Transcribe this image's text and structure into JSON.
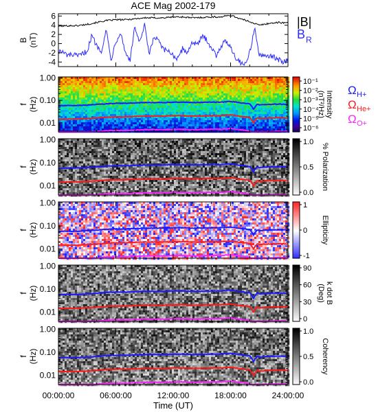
{
  "chart_data": {
    "type": "line",
    "title": "ACE Mag 2002-179",
    "xlabel": "Time (UT)",
    "x_ticks": [
      "00:00:00",
      "06:00:00",
      "12:00:00",
      "18:00:00",
      "24:00:00"
    ],
    "xlim_hours": [
      0,
      24
    ],
    "panels": [
      {
        "id": "b-field",
        "type": "line",
        "ylabel_main": "B",
        "ylabel_unit": "(nT)",
        "ylim": [
          -5,
          6.5
        ],
        "y_ticks": [
          "6",
          "4",
          "2",
          "0",
          "-2",
          "-4"
        ],
        "legend": [
          {
            "label": "|B|",
            "color": "#000000"
          },
          {
            "label": "B",
            "sub": "R",
            "color": "#2a2aff"
          }
        ],
        "series": [
          {
            "name": "|B|",
            "color": "#000000",
            "x": [
              0,
              1,
              2,
              3,
              4,
              5,
              6,
              7,
              8,
              9,
              10,
              11,
              12,
              13,
              14,
              15,
              16,
              17,
              18,
              19,
              20,
              21,
              22,
              23,
              24
            ],
            "y": [
              3.8,
              3.9,
              3.9,
              4.2,
              4.6,
              5.0,
              5.2,
              5.2,
              5.4,
              5.6,
              5.6,
              5.6,
              5.8,
              5.8,
              5.6,
              5.7,
              5.8,
              5.8,
              6.2,
              5.4,
              4.8,
              4.0,
              4.4,
              4.6,
              4.5
            ]
          },
          {
            "name": "B_R",
            "color": "#2a2aff",
            "x": [
              0,
              0.5,
              1,
              1.5,
              2,
              2.5,
              3,
              3.5,
              4,
              4.5,
              5,
              5.5,
              6,
              6.5,
              7,
              7.5,
              8,
              8.5,
              9,
              9.5,
              10,
              10.5,
              11,
              11.5,
              12,
              12.5,
              13,
              13.5,
              14,
              14.5,
              15,
              15.5,
              16,
              16.5,
              17,
              17.5,
              18,
              18.5,
              19,
              19.5,
              20,
              20.5,
              21,
              21.5,
              22,
              22.5,
              23,
              23.5,
              24
            ],
            "y": [
              -1.5,
              -2.0,
              -2.6,
              -2.4,
              -2.8,
              -2.3,
              -1.6,
              1.8,
              -0.5,
              -1.5,
              3.0,
              -3.5,
              0.5,
              2.5,
              -2.0,
              -3.5,
              3.8,
              0.0,
              4.0,
              -2.5,
              1.5,
              0.5,
              -1.5,
              -1.5,
              -2.5,
              -3.5,
              -1.0,
              -2.0,
              0.5,
              -0.5,
              1.5,
              1.0,
              -1.0,
              -2.5,
              -0.5,
              0.5,
              -0.5,
              -3.0,
              -4.0,
              -4.5,
              -2.0,
              3.5,
              -2.5,
              -3.0,
              -2.5,
              -3.0,
              -3.5,
              -4.0,
              -3.5
            ]
          }
        ]
      },
      {
        "id": "intensity",
        "type": "heatmap",
        "ylabel_main": "f",
        "ylabel_unit": "(Hz)",
        "y_scale": "log",
        "ylim": [
          0.004,
          1.1
        ],
        "y_ticks": [
          "1.00",
          "0.10",
          "0.01"
        ],
        "colorbar": {
          "label": "Intensity",
          "unit": "(nT²/Hz)",
          "ticks": [
            "10⁻¹",
            "10⁻²",
            "10⁻³",
            "10⁻⁴",
            "10⁻⁵",
            "10⁻⁶"
          ],
          "colormap": "rainbow"
        }
      },
      {
        "id": "polarization",
        "type": "heatmap",
        "ylabel_main": "f",
        "ylabel_unit": "(Hz)",
        "y_scale": "log",
        "ylim": [
          0.004,
          1.1
        ],
        "y_ticks": [
          "1.00",
          "0.10",
          "0.01"
        ],
        "colorbar": {
          "label": "% Polarization",
          "ticks": [
            "1.0",
            "0.5",
            "0.0"
          ],
          "colormap": "gray"
        }
      },
      {
        "id": "ellipticity",
        "type": "heatmap",
        "ylabel_main": "f",
        "ylabel_unit": "(Hz)",
        "y_scale": "log",
        "ylim": [
          0.004,
          1.1
        ],
        "y_ticks": [
          "1.00",
          "0.10",
          "0.01"
        ],
        "colorbar": {
          "label": "Ellipticity",
          "ticks": [
            "1",
            "0",
            "-1"
          ],
          "colormap": "bwr"
        }
      },
      {
        "id": "kdotb",
        "type": "heatmap",
        "ylabel_main": "f",
        "ylabel_unit": "(Hz)",
        "y_scale": "log",
        "ylim": [
          0.004,
          1.1
        ],
        "y_ticks": [
          "1.00",
          "0.10",
          "0.01"
        ],
        "colorbar": {
          "label": "k dot B",
          "unit": "(Deg)",
          "ticks": [
            "90",
            "60",
            "30",
            "0"
          ],
          "colormap": "gray"
        }
      },
      {
        "id": "coherency",
        "type": "heatmap",
        "ylabel_main": "f",
        "ylabel_unit": "(Hz)",
        "y_scale": "log",
        "ylim": [
          0.004,
          1.1
        ],
        "y_ticks": [
          "1.00",
          "0.10",
          "0.01"
        ],
        "colorbar": {
          "label": "Coherency",
          "ticks": [
            "1.0",
            "0.5",
            "0.0"
          ],
          "colormap": "gray"
        }
      }
    ],
    "gyrofrequency_lines": {
      "legend": [
        {
          "label": "Ω",
          "sub": "H+",
          "color": "#1a1aff"
        },
        {
          "label": "Ω",
          "sub": "He+",
          "color": "#ff1a1a"
        },
        {
          "label": "Ω",
          "sub": "O+",
          "color": "#ff22ff"
        }
      ],
      "x": [
        0,
        1,
        2,
        3,
        4,
        5,
        6,
        7,
        8,
        9,
        10,
        11,
        12,
        13,
        14,
        15,
        16,
        17,
        18,
        19,
        20,
        20.4,
        20.8,
        21,
        22,
        23,
        24
      ],
      "H+": [
        0.058,
        0.059,
        0.059,
        0.062,
        0.066,
        0.071,
        0.074,
        0.074,
        0.077,
        0.08,
        0.08,
        0.08,
        0.083,
        0.083,
        0.08,
        0.081,
        0.083,
        0.083,
        0.09,
        0.078,
        0.07,
        0.04,
        0.068,
        0.062,
        0.066,
        0.068,
        0.066
      ],
      "He+": [
        0.0145,
        0.0148,
        0.0148,
        0.0155,
        0.0165,
        0.0178,
        0.0185,
        0.0185,
        0.0193,
        0.02,
        0.02,
        0.02,
        0.0208,
        0.0208,
        0.02,
        0.0203,
        0.0208,
        0.0208,
        0.0225,
        0.0195,
        0.0175,
        0.01,
        0.017,
        0.0155,
        0.0165,
        0.017,
        0.0165
      ],
      "O+": [
        0.0036,
        0.0037,
        0.0037,
        0.0039,
        0.0041,
        0.0045,
        0.0046,
        0.0046,
        0.0048,
        0.005,
        0.005,
        0.005,
        0.0052,
        0.0052,
        0.005,
        0.0051,
        0.0052,
        0.0052,
        0.0056,
        0.0049,
        0.0044,
        0.0025,
        0.0042,
        0.0039,
        0.0041,
        0.0042,
        0.0041
      ]
    }
  }
}
